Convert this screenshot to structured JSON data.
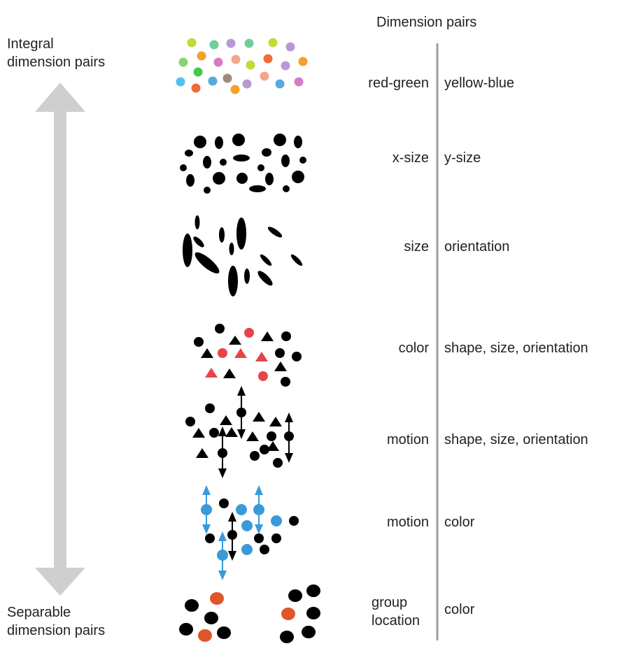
{
  "header": "Dimension pairs",
  "top_label": "Integral\ndimension pairs",
  "bottom_label": "Separable\ndimension pairs",
  "rows": [
    {
      "left": "red-green",
      "right": "yellow-blue"
    },
    {
      "left": "x-size",
      "right": "y-size"
    },
    {
      "left": "size",
      "right": "orientation"
    },
    {
      "left": "color",
      "right": "shape, size, orientation"
    },
    {
      "left": "motion",
      "right": "shape, size, orientation"
    },
    {
      "left": "motion",
      "right": "color"
    },
    {
      "left": "group\nlocation",
      "right": "color"
    }
  ],
  "colors": {
    "arrow": "#cfcfcf",
    "divider": "#9e9e9e",
    "red": "#e8434a",
    "blue": "#3a9ad9",
    "orange": "#e0562a",
    "ink": "#000000"
  }
}
